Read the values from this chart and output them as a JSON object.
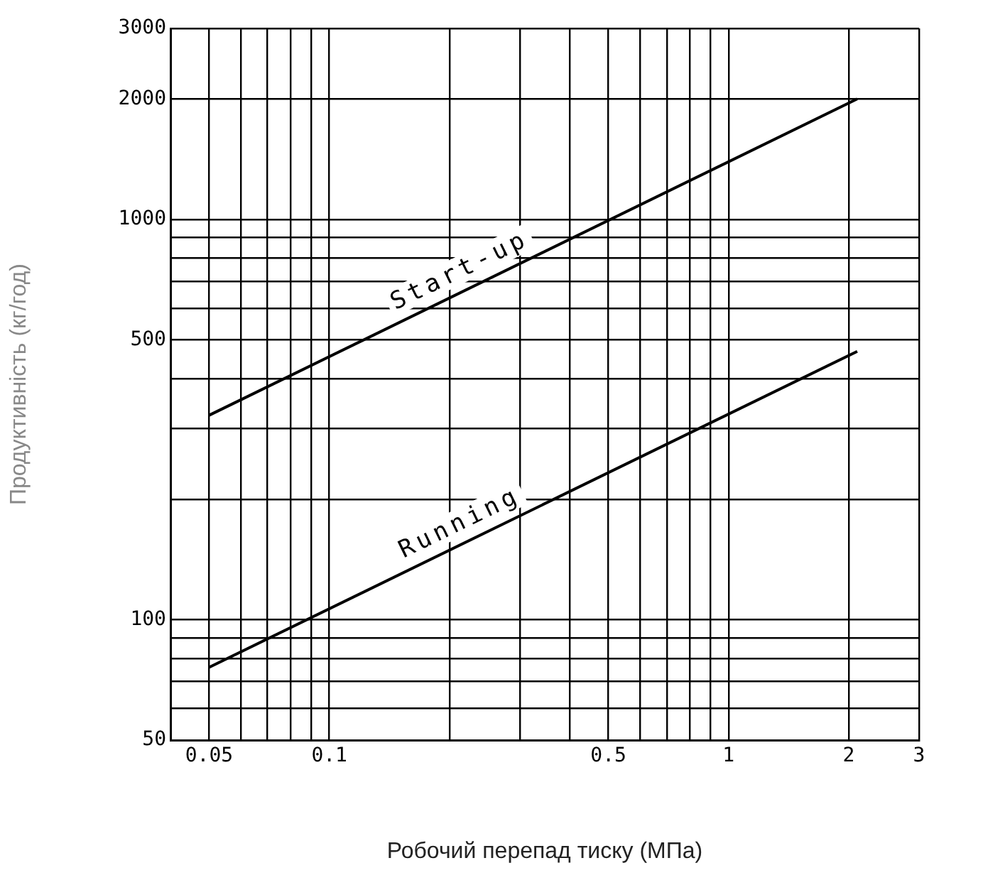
{
  "chart_data": {
    "type": "line",
    "xlabel": "Робочий перепад тиску (МПа)",
    "ylabel": "Продуктивність (кг/год)",
    "log": "xy",
    "grid": true,
    "legend": false,
    "marker": "none",
    "line_style": "solid",
    "xlim": [
      0.04,
      3
    ],
    "ylim": [
      50,
      3000
    ],
    "xticks": [
      0.05,
      {
        "value": 0.06,
        "label": null
      },
      {
        "value": 0.07,
        "label": null
      },
      {
        "value": 0.08,
        "label": null
      },
      {
        "value": 0.09,
        "label": null
      },
      0.1,
      {
        "value": 0.2,
        "label": null
      },
      {
        "value": 0.3,
        "label": null
      },
      {
        "value": 0.4,
        "label": null
      },
      0.5,
      {
        "value": 0.6,
        "label": null
      },
      {
        "value": 0.7,
        "label": null
      },
      {
        "value": 0.8,
        "label": null
      },
      {
        "value": 0.9,
        "label": null
      },
      1,
      2,
      3
    ],
    "yticks": [
      50,
      {
        "value": 60,
        "label": null
      },
      {
        "value": 70,
        "label": null
      },
      {
        "value": 80,
        "label": null
      },
      {
        "value": 90,
        "label": null
      },
      100,
      {
        "value": 200,
        "label": null
      },
      {
        "value": 300,
        "label": null
      },
      {
        "value": 400,
        "label": null
      },
      500,
      {
        "value": 600,
        "label": null
      },
      {
        "value": 700,
        "label": null
      },
      {
        "value": 800,
        "label": null
      },
      {
        "value": 900,
        "label": null
      },
      1000,
      2000,
      3000
    ],
    "x": [
      0.05,
      2.1
    ],
    "series": [
      {
        "name": "Start-up",
        "color": "#000000",
        "values": [
          324,
          2000
        ]
      },
      {
        "name": "Running",
        "color": "#000000",
        "values": [
          76,
          468
        ]
      }
    ]
  }
}
